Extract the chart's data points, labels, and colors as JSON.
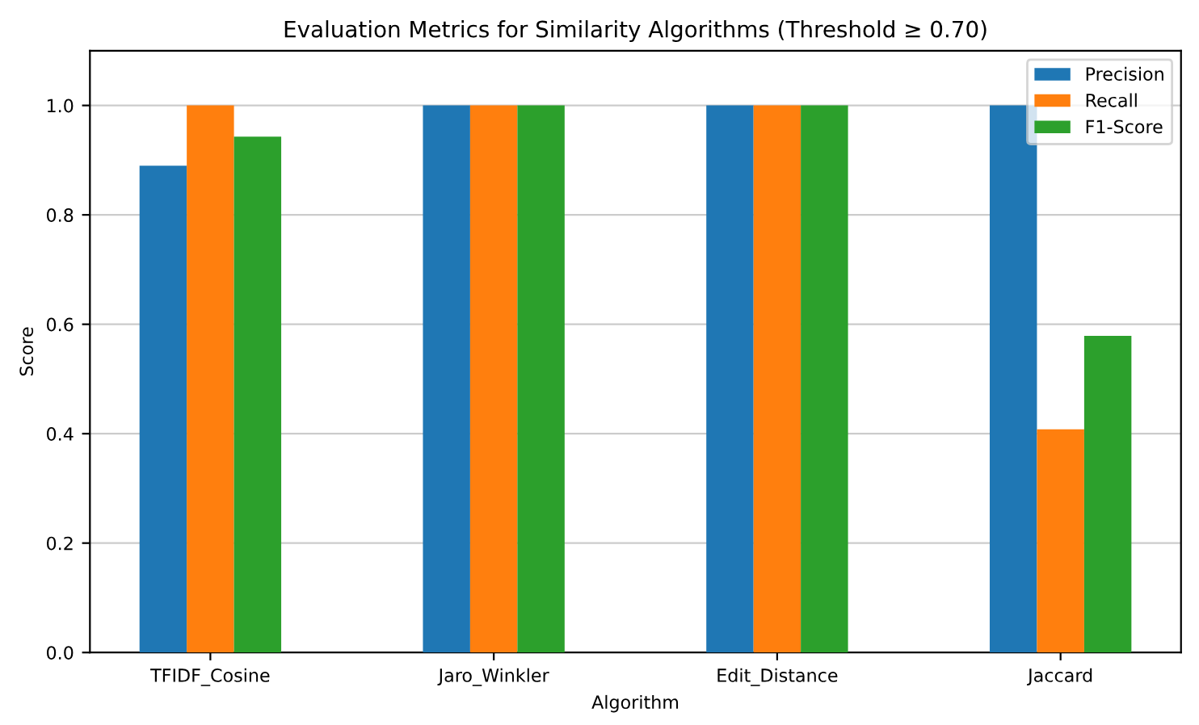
{
  "chart_data": {
    "type": "bar",
    "title": "Evaluation Metrics for Similarity Algorithms (Threshold ≥ 0.70)",
    "xlabel": "Algorithm",
    "ylabel": "Score",
    "categories": [
      "TFIDF_Cosine",
      "Jaro_Winkler",
      "Edit_Distance",
      "Jaccard"
    ],
    "series": [
      {
        "name": "Precision",
        "color": "#1f77b4",
        "values": [
          0.89,
          1.0,
          1.0,
          1.0
        ]
      },
      {
        "name": "Recall",
        "color": "#ff7f0e",
        "values": [
          1.0,
          1.0,
          1.0,
          0.408
        ]
      },
      {
        "name": "F1-Score",
        "color": "#2ca02c",
        "values": [
          0.943,
          1.0,
          1.0,
          0.579
        ]
      }
    ],
    "ylim": [
      0,
      1.1
    ],
    "yticks": [
      {
        "value": 0,
        "label": "0.0"
      },
      {
        "value": 0.2,
        "label": "0.2"
      },
      {
        "value": 0.4,
        "label": "0.4"
      },
      {
        "value": 0.6,
        "label": "0.6"
      },
      {
        "value": 0.8,
        "label": "0.8"
      },
      {
        "value": 1.0,
        "label": "1.0"
      }
    ],
    "grid": "y",
    "legend": "top right"
  }
}
